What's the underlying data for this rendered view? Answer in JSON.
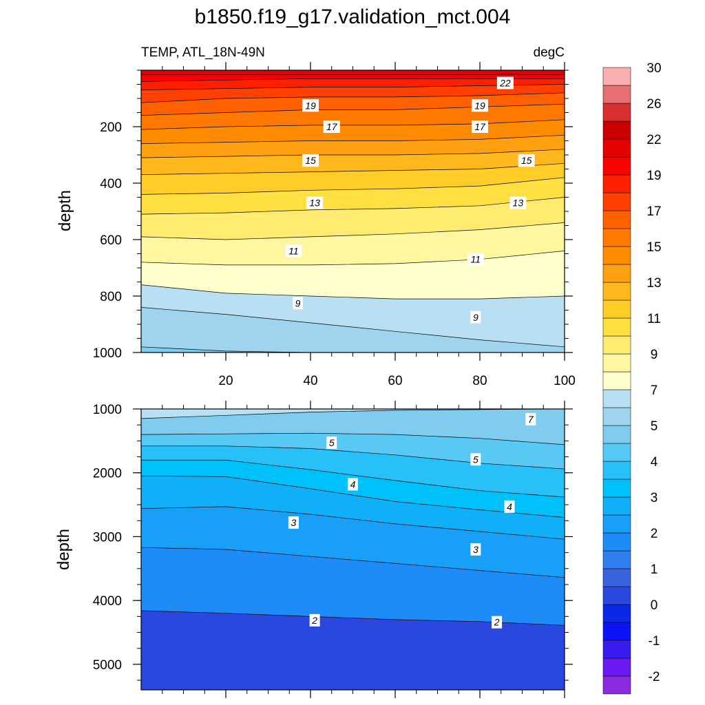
{
  "chart_data": {
    "type": "contour",
    "title": "b1850.f19_g17.validation_mct.004",
    "left_string": "TEMP, ATL_18N-49N",
    "right_string": "degC",
    "ylabel": "depth",
    "colorbar": {
      "levels": [
        "-2",
        "-1",
        "0",
        "1",
        "2",
        "3",
        "4",
        "5",
        "7",
        "9",
        "11",
        "13",
        "15",
        "17",
        "19",
        "22",
        "26",
        "30"
      ],
      "colors": [
        "#8A2BE2",
        "#6A1AF0",
        "#3A1CF2",
        "#0A14F5",
        "#0A28E6",
        "#2A48E0",
        "#3A64DE",
        "#2E80F0",
        "#1E8CF8",
        "#18A0F8",
        "#10B0F8",
        "#00C0FA",
        "#28C0F8",
        "#58C8F4",
        "#80CCEE",
        "#A0D4EE",
        "#B8E0F2",
        "#FFFFCC",
        "#FFF6A0",
        "#FFEB70",
        "#FFE040",
        "#FFCC28",
        "#FFB81C",
        "#FFA010",
        "#FF8C00",
        "#FF7800",
        "#FF6000",
        "#FF4000",
        "#FF2000",
        "#FF0000",
        "#E60000",
        "#CC0000",
        "#D83030",
        "#E87070",
        "#FAB0B0"
      ]
    },
    "panels": [
      {
        "name": "upper",
        "x_range": [
          0,
          100
        ],
        "x_ticks": [
          20,
          40,
          60,
          80,
          100
        ],
        "y_range": [
          0,
          1000
        ],
        "y_ticks": [
          200,
          400,
          600,
          800,
          1000
        ],
        "y_reversed": true,
        "contours": [
          {
            "value": 22,
            "depth": [
              15,
              15,
              15,
              15,
              15,
              15
            ]
          },
          {
            "value": 21,
            "depth": [
              40,
              35,
              30,
              30,
              30,
              30
            ]
          },
          {
            "value": 20,
            "depth": [
              70,
              65,
              60,
              60,
              55,
              50
            ]
          },
          {
            "value": 19,
            "depth": [
              115,
              100,
              95,
              95,
              90,
              80
            ]
          },
          {
            "value": 18,
            "depth": [
              160,
              150,
              140,
              140,
              130,
              120
            ]
          },
          {
            "value": 17,
            "depth": [
              210,
              200,
              195,
              195,
              190,
              175
            ]
          },
          {
            "value": 16,
            "depth": [
              260,
              255,
              250,
              250,
              245,
              230
            ]
          },
          {
            "value": 15,
            "depth": [
              310,
              305,
              300,
              300,
              295,
              280
            ]
          },
          {
            "value": 14,
            "depth": [
              370,
              365,
              360,
              355,
              350,
              330
            ]
          },
          {
            "value": 13,
            "depth": [
              440,
              435,
              425,
              420,
              410,
              380
            ]
          },
          {
            "value": 12,
            "depth": [
              510,
              505,
              495,
              490,
              480,
              450
            ]
          },
          {
            "value": 11,
            "depth": [
              590,
              600,
              590,
              580,
              565,
              540
            ]
          },
          {
            "value": 10,
            "depth": [
              680,
              690,
              690,
              685,
              670,
              640
            ]
          },
          {
            "value": 9,
            "depth": [
              760,
              790,
              800,
              810,
              810,
              800
            ]
          },
          {
            "value": 8,
            "depth": [
              840,
              865,
              895,
              925,
              955,
              980
            ]
          },
          {
            "value": 7,
            "depth": [
              980,
              995,
              1000,
              1000,
              1000,
              1000
            ]
          }
        ],
        "labels": [
          {
            "text": "22",
            "x": 86,
            "y": 45
          },
          {
            "text": "19",
            "x": 40,
            "y": 125
          },
          {
            "text": "19",
            "x": 80,
            "y": 125
          },
          {
            "text": "17",
            "x": 45,
            "y": 200
          },
          {
            "text": "17",
            "x": 80,
            "y": 200
          },
          {
            "text": "15",
            "x": 40,
            "y": 320
          },
          {
            "text": "15",
            "x": 91,
            "y": 320
          },
          {
            "text": "13",
            "x": 41,
            "y": 470
          },
          {
            "text": "13",
            "x": 89,
            "y": 470
          },
          {
            "text": "11",
            "x": 36,
            "y": 640
          },
          {
            "text": "11",
            "x": 79,
            "y": 670
          },
          {
            "text": "9",
            "x": 37,
            "y": 825
          },
          {
            "text": "9",
            "x": 79,
            "y": 875
          }
        ]
      },
      {
        "name": "lower",
        "x_range": [
          0,
          100
        ],
        "x_ticks": [
          20,
          40,
          60,
          80,
          100
        ],
        "y_range": [
          1000,
          5400
        ],
        "y_ticks": [
          1000,
          2000,
          3000,
          4000,
          5000
        ],
        "y_reversed": true,
        "contours": [
          {
            "value": 7,
            "depth": [
              1150,
              1100,
              1050,
              1020,
              1010,
              1000
            ]
          },
          {
            "value": 6,
            "depth": [
              1400,
              1390,
              1380,
              1400,
              1460,
              1560
            ]
          },
          {
            "value": 5,
            "depth": [
              1580,
              1580,
              1620,
              1720,
              1850,
              1940
            ]
          },
          {
            "value": 4.5,
            "depth": [
              1800,
              1800,
              1950,
              2120,
              2280,
              2380
            ]
          },
          {
            "value": 4,
            "depth": [
              2050,
              2060,
              2250,
              2450,
              2580,
              2700
            ]
          },
          {
            "value": 3.5,
            "depth": [
              2560,
              2530,
              2650,
              2800,
              2920,
              3040
            ]
          },
          {
            "value": 3,
            "depth": [
              3170,
              3200,
              3310,
              3420,
              3530,
              3640
            ]
          },
          {
            "value": 2,
            "depth": [
              4160,
              4200,
              4250,
              4300,
              4330,
              4390
            ]
          }
        ],
        "labels": [
          {
            "text": "7",
            "x": 92,
            "y": 1160
          },
          {
            "text": "5",
            "x": 45,
            "y": 1530
          },
          {
            "text": "5",
            "x": 79,
            "y": 1790
          },
          {
            "text": "4",
            "x": 50,
            "y": 2180
          },
          {
            "text": "4",
            "x": 87,
            "y": 2530
          },
          {
            "text": "3",
            "x": 36,
            "y": 2780
          },
          {
            "text": "3",
            "x": 79,
            "y": 3200
          },
          {
            "text": "2",
            "x": 41,
            "y": 4310
          },
          {
            "text": "2",
            "x": 84,
            "y": 4340
          }
        ]
      }
    ]
  }
}
